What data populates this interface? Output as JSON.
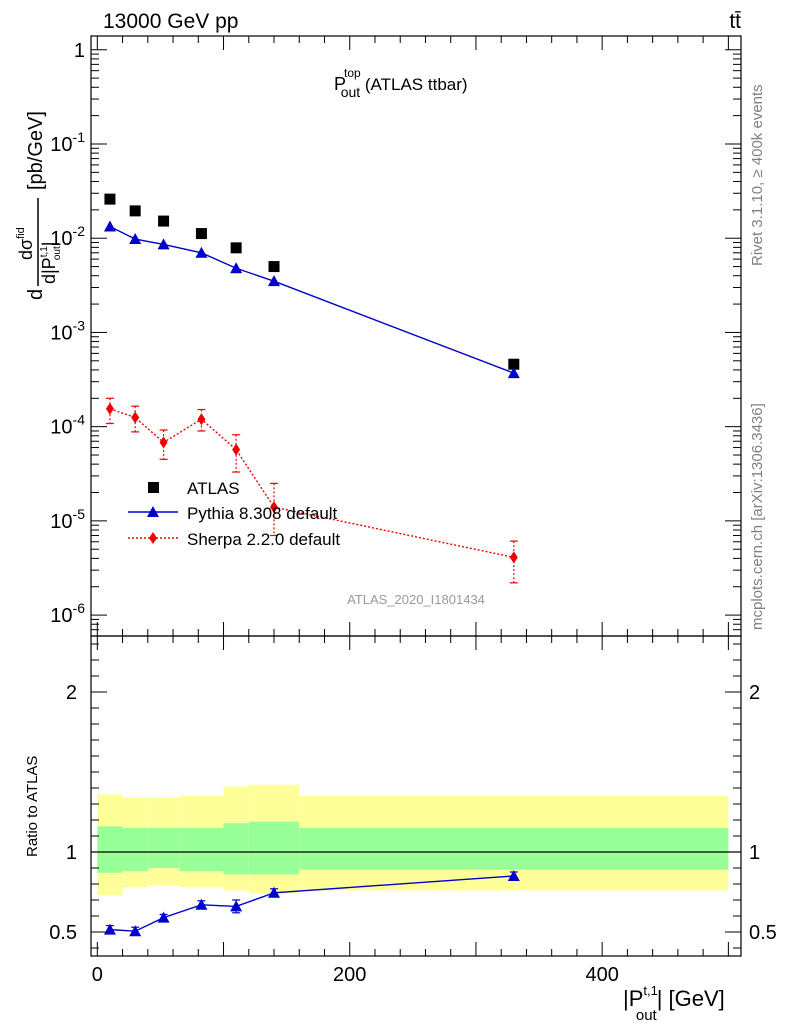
{
  "header": {
    "energy_label": "13000 GeV pp",
    "process_label": "tt̄"
  },
  "side_labels": {
    "rivet": "Rivet 3.1.10, ≥ 400k events",
    "mcplots": "mcplots.cern.ch [arXiv:1306.3436]"
  },
  "watermark": "ATLAS_2020_I1801434",
  "plot_title": {
    "main": "P",
    "sup": "top",
    "sub": "out",
    "suffix": " (ATLAS ttbar)"
  },
  "y_axis_label": {
    "d": "d",
    "num_d": "d",
    "sigma": "σ",
    "sigma_sup": "fid",
    "den": "d|P",
    "den_sup": "t,1",
    "den_sub": "out",
    "den_close": "|",
    "unit": "[pb/GeV]"
  },
  "ratio_y_label": "Ratio to ATLAS",
  "x_axis_label": {
    "main": "|P",
    "sup": "t,1",
    "sub": "out",
    "suffix": "| [GeV]"
  },
  "legend": [
    {
      "label": "ATLAS",
      "marker": "square",
      "color": "#000000",
      "line": "none"
    },
    {
      "label": "Pythia 8.308 default",
      "marker": "triangle",
      "color": "#0000cc",
      "line": "solid"
    },
    {
      "label": "Sherpa 2.2.0 default",
      "marker": "diamond",
      "color": "#ee0000",
      "line": "dotted"
    }
  ],
  "chart_data": [
    {
      "type": "scatter",
      "panel": "main",
      "yscale": "log",
      "xlim": [
        -5,
        510
      ],
      "ylim": [
        6e-07,
        1.4
      ],
      "y_ticks": [
        {
          "value": 1e-06,
          "base": "10",
          "exp": "-6"
        },
        {
          "value": 1e-05,
          "base": "10",
          "exp": "-5"
        },
        {
          "value": 0.0001,
          "base": "10",
          "exp": "-4"
        },
        {
          "value": 0.001,
          "base": "10",
          "exp": "-3"
        },
        {
          "value": 0.01,
          "base": "10",
          "exp": "-2"
        },
        {
          "value": 0.1,
          "base": "10",
          "exp": "-1"
        },
        {
          "value": 1,
          "base": "1",
          "exp": ""
        }
      ],
      "series": [
        {
          "name": "ATLAS",
          "color": "#000000",
          "marker": "square",
          "x": [
            10,
            30,
            52.5,
            82.5,
            110,
            140,
            330
          ],
          "y": [
            0.026,
            0.0195,
            0.0152,
            0.0112,
            0.0079,
            0.005,
            0.00046
          ]
        },
        {
          "name": "Pythia 8.308 default",
          "color": "#0000cc",
          "marker": "triangle",
          "x": [
            10,
            30,
            52.5,
            82.5,
            110,
            140,
            330
          ],
          "y": [
            0.0133,
            0.0098,
            0.0086,
            0.007,
            0.0048,
            0.0035,
            0.00037
          ]
        },
        {
          "name": "Sherpa 2.2.0 default",
          "color": "#ee0000",
          "marker": "diamond",
          "x": [
            10,
            30,
            52.5,
            82.5,
            110,
            140,
            330
          ],
          "y": [
            0.000155,
            0.000125,
            6.8e-05,
            0.00012,
            5.7e-05,
            1.4e-05,
            4.1e-06
          ],
          "yerr_low": [
            0.000108,
            8.8e-05,
            4.5e-05,
            9e-05,
            3.3e-05,
            7e-06,
            2.2e-06
          ],
          "yerr_high": [
            0.0002,
            0.000165,
            9.2e-05,
            0.000152,
            8.2e-05,
            2.5e-05,
            6.1e-06
          ]
        }
      ]
    },
    {
      "type": "scatter",
      "panel": "ratio",
      "xlabel": "|P out t,1| [GeV]",
      "ylabel": "Ratio to ATLAS",
      "xlim": [
        -5,
        510
      ],
      "ylim": [
        0.35,
        2.35
      ],
      "x_ticks": [
        0,
        200,
        400
      ],
      "y_ticks": [
        0.5,
        1,
        2
      ],
      "bands": {
        "edges": [
          0,
          20,
          40,
          65,
          100,
          120,
          160,
          500
        ],
        "inner_low": [
          0.87,
          0.88,
          0.9,
          0.88,
          0.86,
          0.86,
          0.89
        ],
        "inner_high": [
          1.16,
          1.15,
          1.15,
          1.15,
          1.18,
          1.19,
          1.15
        ],
        "outer_low": [
          0.73,
          0.78,
          0.79,
          0.78,
          0.76,
          0.74,
          0.76
        ],
        "outer_high": [
          1.36,
          1.34,
          1.34,
          1.35,
          1.41,
          1.42,
          1.35
        ],
        "inner_color": "#99ff99",
        "outer_color": "#ffff99"
      },
      "series": [
        {
          "name": "Pythia 8.308 default",
          "color": "#0000cc",
          "marker": "triangle",
          "x": [
            10,
            30,
            52.5,
            82.5,
            110,
            140,
            330
          ],
          "y": [
            0.515,
            0.505,
            0.59,
            0.67,
            0.66,
            0.745,
            0.85
          ],
          "yerr_low": [
            0.025,
            0.025,
            0.02,
            0.025,
            0.04,
            0.025,
            0.025
          ],
          "yerr_high": [
            0.025,
            0.025,
            0.02,
            0.025,
            0.04,
            0.025,
            0.025
          ]
        }
      ]
    }
  ]
}
